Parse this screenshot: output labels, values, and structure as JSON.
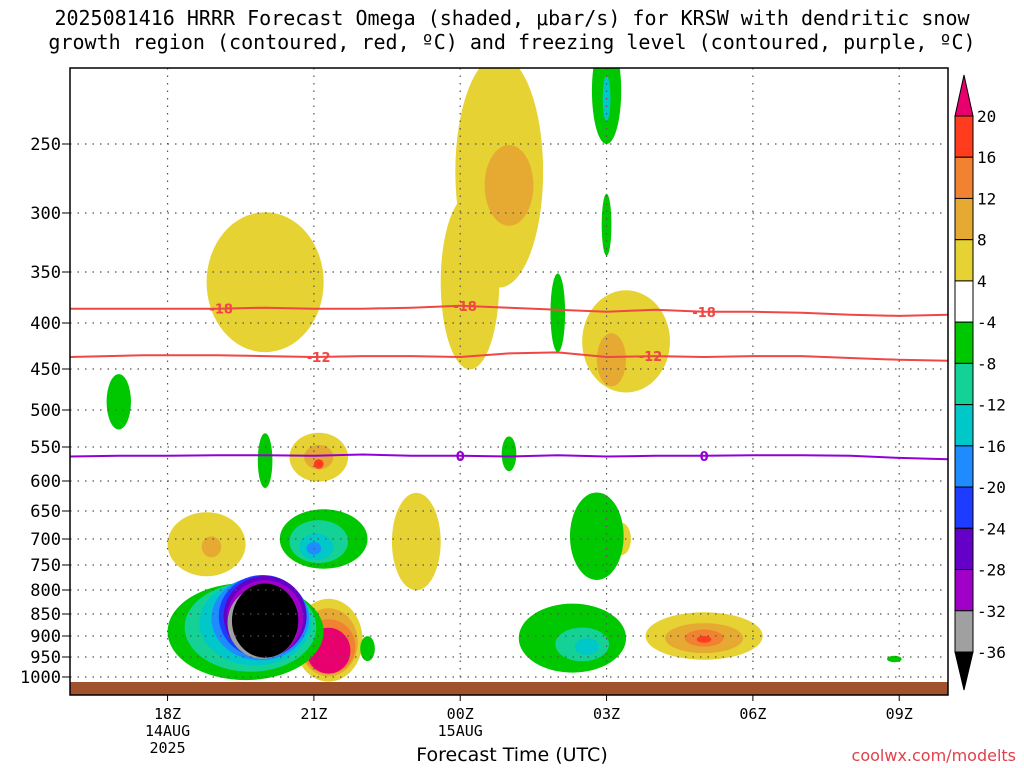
{
  "title": "2025081416 HRRR Forecast Omega (shaded, μbar/s) for KRSW with dendritic snow growth region (contoured, red, ºC) and freezing level (contoured, purple, ºC)",
  "xlabel": "Forecast Time (UTC)",
  "credit": "coolwx.com/modelts",
  "chart_data": {
    "type": "heatmap",
    "y_ticks": [
      250,
      300,
      350,
      400,
      450,
      500,
      550,
      600,
      650,
      700,
      750,
      800,
      850,
      900,
      950,
      1000
    ],
    "y_range_hpa": [
      200,
      1030
    ],
    "x_ticks": [
      {
        "hour": 18,
        "label": "18Z",
        "sub": [
          "14AUG",
          "2025"
        ]
      },
      {
        "hour": 21,
        "label": "21Z",
        "sub": []
      },
      {
        "hour": 24,
        "label": "00Z",
        "sub": [
          "15AUG"
        ]
      },
      {
        "hour": 27,
        "label": "03Z",
        "sub": []
      },
      {
        "hour": 30,
        "label": "06Z",
        "sub": []
      },
      {
        "hour": 33,
        "label": "09Z",
        "sub": []
      }
    ],
    "x_range_hours": [
      16,
      34
    ],
    "grid": true,
    "colorbar": {
      "labels": [
        "20",
        "16",
        "12",
        "8",
        "4",
        "-4",
        "-8",
        "-12",
        "-16",
        "-20",
        "-24",
        "-28",
        "-32",
        "-36"
      ],
      "levels": [
        {
          "color": "#e8006e"
        },
        {
          "color": "#ff3c1e"
        },
        {
          "color": "#f08232"
        },
        {
          "color": "#e6aa32"
        },
        {
          "color": "#e6d232"
        },
        {
          "color": "#ffffff"
        },
        {
          "color": "#00c800"
        },
        {
          "color": "#14d296"
        },
        {
          "color": "#00c8c8"
        },
        {
          "color": "#1e8cff"
        },
        {
          "color": "#1e3cff"
        },
        {
          "color": "#6400c8"
        },
        {
          "color": "#a000c8"
        },
        {
          "color": "#a0a0a0"
        },
        {
          "color": "#000000"
        }
      ]
    },
    "contours": [
      {
        "name": "-18",
        "color": "#f04646",
        "points": [
          [
            16,
            386
          ],
          [
            17.5,
            386
          ],
          [
            19,
            386
          ],
          [
            20,
            385
          ],
          [
            21,
            386
          ],
          [
            22,
            386
          ],
          [
            23,
            385
          ],
          [
            24,
            383
          ],
          [
            25,
            385
          ],
          [
            26,
            387
          ],
          [
            27,
            389
          ],
          [
            28,
            387
          ],
          [
            29,
            389
          ],
          [
            30,
            389
          ],
          [
            31,
            390
          ],
          [
            32,
            392
          ],
          [
            33,
            393
          ],
          [
            34,
            392
          ]
        ],
        "labels": [
          {
            "x": 19.1,
            "text": "-18"
          },
          {
            "x": 24.1,
            "text": "-18"
          },
          {
            "x": 29.0,
            "text": "-18"
          }
        ]
      },
      {
        "name": "-12",
        "color": "#f04646",
        "points": [
          [
            16,
            437
          ],
          [
            17.5,
            435
          ],
          [
            19,
            435
          ],
          [
            20,
            436
          ],
          [
            21,
            437
          ],
          [
            22,
            436
          ],
          [
            23,
            436
          ],
          [
            24,
            437
          ],
          [
            25,
            433
          ],
          [
            26,
            432
          ],
          [
            27,
            437
          ],
          [
            28,
            436
          ],
          [
            29,
            437
          ],
          [
            30,
            436
          ],
          [
            31,
            436
          ],
          [
            32,
            438
          ],
          [
            33,
            440
          ],
          [
            34,
            441
          ]
        ],
        "labels": [
          {
            "x": 21.1,
            "text": "-12"
          },
          {
            "x": 27.9,
            "text": "-12"
          }
        ]
      },
      {
        "name": "0",
        "color": "#9400d3",
        "points": [
          [
            16,
            564
          ],
          [
            17,
            563
          ],
          [
            18,
            563
          ],
          [
            19,
            562
          ],
          [
            20,
            562
          ],
          [
            21,
            563
          ],
          [
            22,
            561
          ],
          [
            23,
            563
          ],
          [
            24,
            563
          ],
          [
            25,
            564
          ],
          [
            26,
            562
          ],
          [
            27,
            564
          ],
          [
            28,
            563
          ],
          [
            29,
            563
          ],
          [
            30,
            562
          ],
          [
            31,
            562
          ],
          [
            32,
            563
          ],
          [
            33,
            566
          ],
          [
            34,
            568
          ]
        ],
        "labels": [
          {
            "x": 24.0,
            "text": "0"
          },
          {
            "x": 29.0,
            "text": "0"
          }
        ]
      }
    ],
    "blobs": [
      {
        "c": 4,
        "x": 20.0,
        "p": 360,
        "rx": 1.2,
        "rp": 65
      },
      {
        "c": 4,
        "x": 24.8,
        "p": 270,
        "rx": 0.9,
        "rp": 85
      },
      {
        "c": 4,
        "x": 24.2,
        "p": 360,
        "rx": 0.6,
        "rp": 80
      },
      {
        "c": 3,
        "x": 25.0,
        "p": 280,
        "rx": 0.5,
        "rp": 30
      },
      {
        "c": 4,
        "x": 27.4,
        "p": 420,
        "rx": 0.9,
        "rp": 55
      },
      {
        "c": 3,
        "x": 27.1,
        "p": 440,
        "rx": 0.3,
        "rp": 30
      },
      {
        "c": 4,
        "x": 21.1,
        "p": 565,
        "rx": 0.6,
        "rp": 35
      },
      {
        "c": 3,
        "x": 21.1,
        "p": 565,
        "rx": 0.3,
        "rp": 18
      },
      {
        "c": 1,
        "x": 21.1,
        "p": 575,
        "rx": 0.1,
        "rp": 7
      },
      {
        "c": 4,
        "x": 18.8,
        "p": 710,
        "rx": 0.8,
        "rp": 60
      },
      {
        "c": 3,
        "x": 18.9,
        "p": 715,
        "rx": 0.2,
        "rp": 20
      },
      {
        "c": 4,
        "x": 23.1,
        "p": 705,
        "rx": 0.5,
        "rp": 90
      },
      {
        "c": 4,
        "x": 27.3,
        "p": 700,
        "rx": 0.2,
        "rp": 30
      },
      {
        "c": 4,
        "x": 29.0,
        "p": 900,
        "rx": 1.2,
        "rp": 55
      },
      {
        "c": 3,
        "x": 29.0,
        "p": 905,
        "rx": 0.8,
        "rp": 35
      },
      {
        "c": 2,
        "x": 29.0,
        "p": 905,
        "rx": 0.4,
        "rp": 20
      },
      {
        "c": 1,
        "x": 29.0,
        "p": 908,
        "rx": 0.15,
        "rp": 8
      },
      {
        "c": 4,
        "x": 21.3,
        "p": 910,
        "rx": 0.7,
        "rp": 95
      },
      {
        "c": 3,
        "x": 21.3,
        "p": 915,
        "rx": 0.6,
        "rp": 80
      },
      {
        "c": 2,
        "x": 21.3,
        "p": 925,
        "rx": 0.55,
        "rp": 65
      },
      {
        "c": 0,
        "x": 21.3,
        "p": 935,
        "rx": 0.45,
        "rp": 55
      },
      {
        "c": 6,
        "x": 21.2,
        "p": 700,
        "rx": 0.9,
        "rp": 55
      },
      {
        "c": 7,
        "x": 21.1,
        "p": 705,
        "rx": 0.6,
        "rp": 40
      },
      {
        "c": 8,
        "x": 21.05,
        "p": 715,
        "rx": 0.35,
        "rp": 25
      },
      {
        "c": 9,
        "x": 21.0,
        "p": 718,
        "rx": 0.15,
        "rp": 12
      },
      {
        "c": 6,
        "x": 19.6,
        "p": 890,
        "rx": 1.6,
        "rp": 110
      },
      {
        "c": 7,
        "x": 19.7,
        "p": 880,
        "rx": 1.35,
        "rp": 100
      },
      {
        "c": 8,
        "x": 19.8,
        "p": 870,
        "rx": 1.15,
        "rp": 95
      },
      {
        "c": 9,
        "x": 19.9,
        "p": 860,
        "rx": 1.0,
        "rp": 92
      },
      {
        "c": 10,
        "x": 19.95,
        "p": 855,
        "rx": 0.9,
        "rp": 90
      },
      {
        "c": 11,
        "x": 20.0,
        "p": 855,
        "rx": 0.85,
        "rp": 88
      },
      {
        "c": 12,
        "x": 20.0,
        "p": 860,
        "rx": 0.78,
        "rp": 84
      },
      {
        "c": 13,
        "x": 19.95,
        "p": 870,
        "rx": 0.72,
        "rp": 80
      },
      {
        "c": 14,
        "x": 20.0,
        "p": 865,
        "rx": 0.68,
        "rp": 82
      },
      {
        "c": 6,
        "x": 22.1,
        "p": 930,
        "rx": 0.15,
        "rp": 30
      },
      {
        "c": 6,
        "x": 20.0,
        "p": 570,
        "rx": 0.15,
        "rp": 40
      },
      {
        "c": 6,
        "x": 17.0,
        "p": 490,
        "rx": 0.25,
        "rp": 35
      },
      {
        "c": 6,
        "x": 25.0,
        "p": 560,
        "rx": 0.15,
        "rp": 25
      },
      {
        "c": 6,
        "x": 26.0,
        "p": 390,
        "rx": 0.15,
        "rp": 40
      },
      {
        "c": 6,
        "x": 26.8,
        "p": 695,
        "rx": 0.55,
        "rp": 80
      },
      {
        "c": 6,
        "x": 26.3,
        "p": 905,
        "rx": 1.1,
        "rp": 80
      },
      {
        "c": 7,
        "x": 26.5,
        "p": 920,
        "rx": 0.55,
        "rp": 40
      },
      {
        "c": 8,
        "x": 26.6,
        "p": 925,
        "rx": 0.25,
        "rp": 20
      },
      {
        "c": 6,
        "x": 27.0,
        "p": 215,
        "rx": 0.3,
        "rp": 35
      },
      {
        "c": 8,
        "x": 27.0,
        "p": 220,
        "rx": 0.08,
        "rp": 15
      },
      {
        "c": 6,
        "x": 27.0,
        "p": 310,
        "rx": 0.1,
        "rp": 25
      },
      {
        "c": 6,
        "x": 32.9,
        "p": 955,
        "rx": 0.15,
        "rp": 8
      }
    ]
  }
}
